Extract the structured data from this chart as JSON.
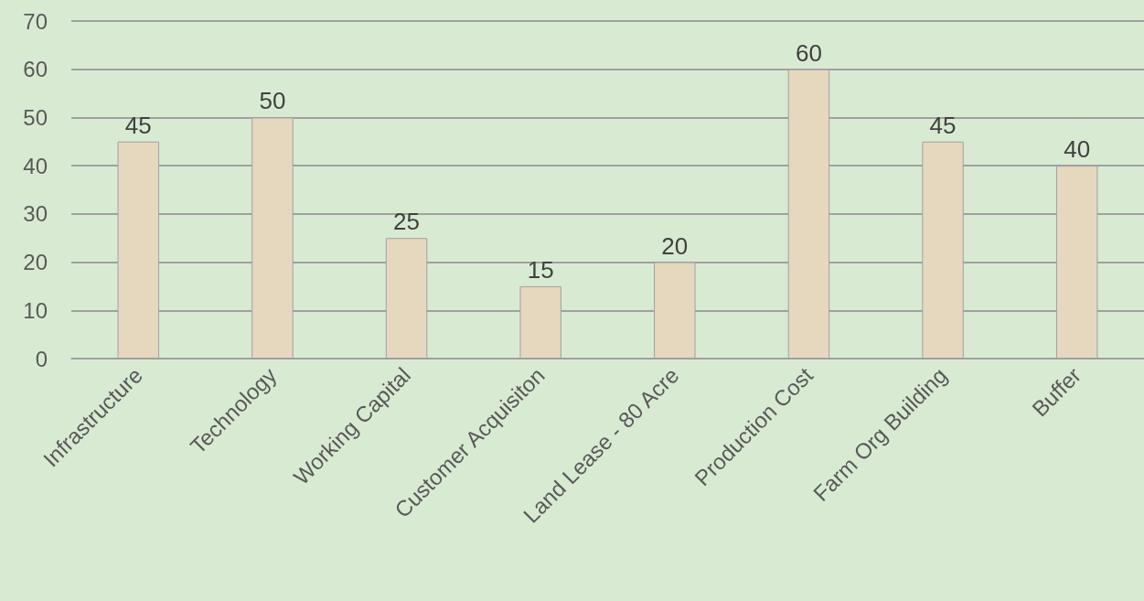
{
  "chart_data": {
    "type": "bar",
    "categories": [
      "Infrastructure",
      "Technology",
      "Working Capital",
      "Customer Acquisiton",
      "Land Lease - 80 Acre",
      "Production Cost",
      "Farm Org Building",
      "Buffer"
    ],
    "values": [
      45,
      50,
      25,
      15,
      20,
      60,
      45,
      40
    ],
    "color": "#e6d8bf",
    "ylim": [
      0,
      70
    ],
    "yticks": [
      0,
      10,
      20,
      30,
      40,
      50,
      60,
      70
    ],
    "grid": "y",
    "data_labels": true
  }
}
